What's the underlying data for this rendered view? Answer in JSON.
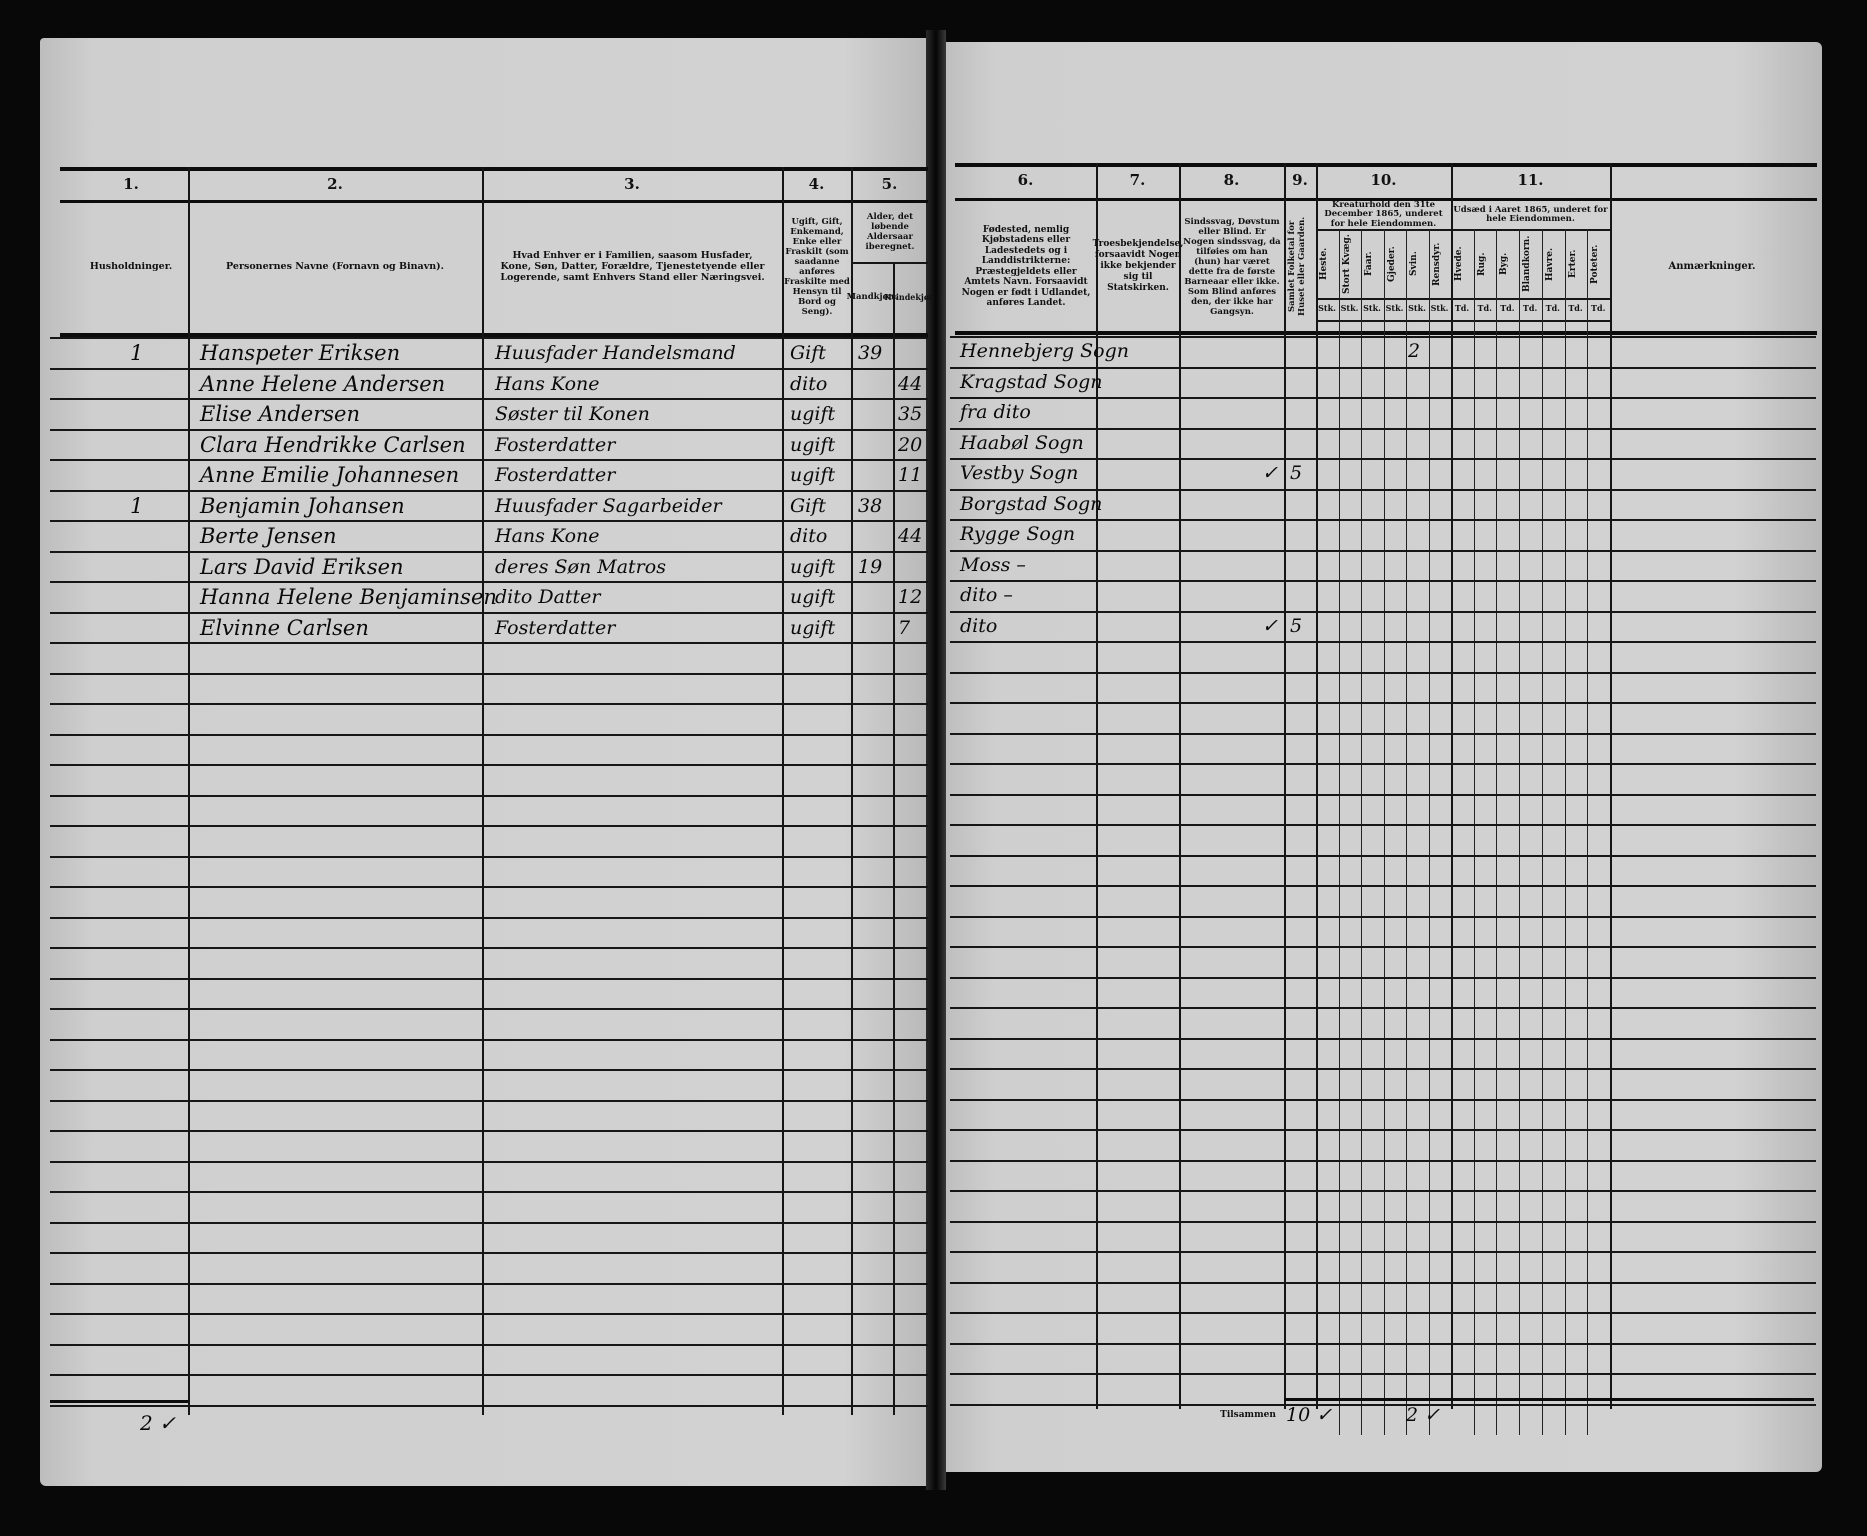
{
  "left_page": {
    "column_numbers": [
      "1.",
      "2.",
      "3.",
      "4.",
      "5."
    ],
    "headers": {
      "households": "Husholdninger.",
      "names": "Personernes Navne (Fornavn og Binavn).",
      "position": "Hvad Enhver er i Familien, saasom Husfader, Kone, Søn, Datter, Forældre, Tjenestetyende eller Logerende, samt Enhvers Stand eller Næringsvei.",
      "marital": "Ugift, Gift, Enkemand, Enke eller Fraskilt (som saadanne anføres Fraskilte med Hensyn til Bord og Seng).",
      "age": "Alder, det løbende Aldersaar iberegnet.",
      "age_male": "Mandkjøn.",
      "age_female": "Kvindekjøn."
    },
    "rows": [
      {
        "household": "1",
        "name": "Hanspeter Eriksen",
        "position": "Huusfader Handelsmand",
        "marital": "Gift",
        "age_male": "39",
        "age_female": ""
      },
      {
        "household": "",
        "name": "Anne Helene Andersen",
        "position": "Hans Kone",
        "marital": "dito",
        "age_male": "",
        "age_female": "44"
      },
      {
        "household": "",
        "name": "Elise Andersen",
        "position": "Søster til Konen",
        "marital": "ugift",
        "age_male": "",
        "age_female": "35"
      },
      {
        "household": "",
        "name": "Clara Hendrikke Carlsen",
        "position": "Fosterdatter",
        "marital": "ugift",
        "age_male": "",
        "age_female": "20"
      },
      {
        "household": "",
        "name": "Anne Emilie Johannesen",
        "position": "Fosterdatter",
        "marital": "ugift",
        "age_male": "",
        "age_female": "11"
      },
      {
        "household": "1",
        "name": "Benjamin Johansen",
        "position": "Huusfader Sagarbeider",
        "marital": "Gift",
        "age_male": "38",
        "age_female": ""
      },
      {
        "household": "",
        "name": "Berte Jensen",
        "position": "Hans Kone",
        "marital": "dito",
        "age_male": "",
        "age_female": "44"
      },
      {
        "household": "",
        "name": "Lars David Eriksen",
        "position": "deres Søn Matros",
        "marital": "ugift",
        "age_male": "19",
        "age_female": ""
      },
      {
        "household": "",
        "name": "Hanna Helene Benjaminsen",
        "position": "dito Datter",
        "marital": "ugift",
        "age_male": "",
        "age_female": "12"
      },
      {
        "household": "",
        "name": "Elvinne Carlsen",
        "position": "Fosterdatter",
        "marital": "ugift",
        "age_male": "",
        "age_female": "7"
      }
    ],
    "household_total": "2 ✓"
  },
  "right_page": {
    "column_numbers": [
      "6.",
      "7.",
      "8.",
      "9.",
      "10.",
      "11."
    ],
    "headers": {
      "birthplace": "Fødested, nemlig Kjøbstadens eller Ladestedets og i Landdistrikterne: Præstegjeldets eller Amtets Navn. Forsaavidt Nogen er født i Udlandet, anføres Landet.",
      "religion": "Troesbekjendelse, forsaavidt Nogen ikke bekjender sig til Statskirken.",
      "disability": "Sindssvag, Døvstum eller Blind. Er Nogen sindssvag, da tilføies om han (hun) har været dette fra de første Barneaar eller ikke. Som Blind anføres den, der ikke har Gangsyn.",
      "population": "Samlet Folketal for Huset eller Gaarden.",
      "livestock": "Kreaturhold den 31te December 1865, underet for hele Eiendommen.",
      "livestock_cols": [
        "Heste.",
        "Stort Kvæg.",
        "Faar.",
        "Gjeder.",
        "Svin.",
        "Rensdyr."
      ],
      "livestock_unit": "Stk.",
      "sowing": "Udsæd i Aaret 1865, underet for hele Eiendommen.",
      "sowing_cols": [
        "Hvede.",
        "Rug.",
        "Byg.",
        "Blandkorn.",
        "Havre.",
        "Erter.",
        "Poteter."
      ],
      "sowing_unit": "Td.",
      "remarks": "Anmærkninger."
    },
    "rows": [
      {
        "birthplace": "Hennebjerg Sogn",
        "disability": "",
        "population": "",
        "svin": "2"
      },
      {
        "birthplace": "Kragstad Sogn",
        "disability": "",
        "population": "",
        "svin": ""
      },
      {
        "birthplace": "fra dito",
        "disability": "",
        "population": "",
        "svin": ""
      },
      {
        "birthplace": "Haabøl Sogn",
        "disability": "",
        "population": "",
        "svin": ""
      },
      {
        "birthplace": "Vestby Sogn",
        "disability": "✓",
        "population": "5",
        "svin": ""
      },
      {
        "birthplace": "Borgstad Sogn",
        "disability": "",
        "population": "",
        "svin": ""
      },
      {
        "birthplace": "Rygge Sogn",
        "disability": "",
        "population": "",
        "svin": ""
      },
      {
        "birthplace": "Moss –",
        "disability": "",
        "population": "",
        "svin": ""
      },
      {
        "birthplace": "dito –",
        "disability": "",
        "population": "",
        "svin": ""
      },
      {
        "birthplace": "dito",
        "disability": "✓",
        "population": "5",
        "svin": ""
      }
    ],
    "total_label": "Tilsammen",
    "total_population": "10 ✓",
    "total_svin": "2 ✓"
  }
}
